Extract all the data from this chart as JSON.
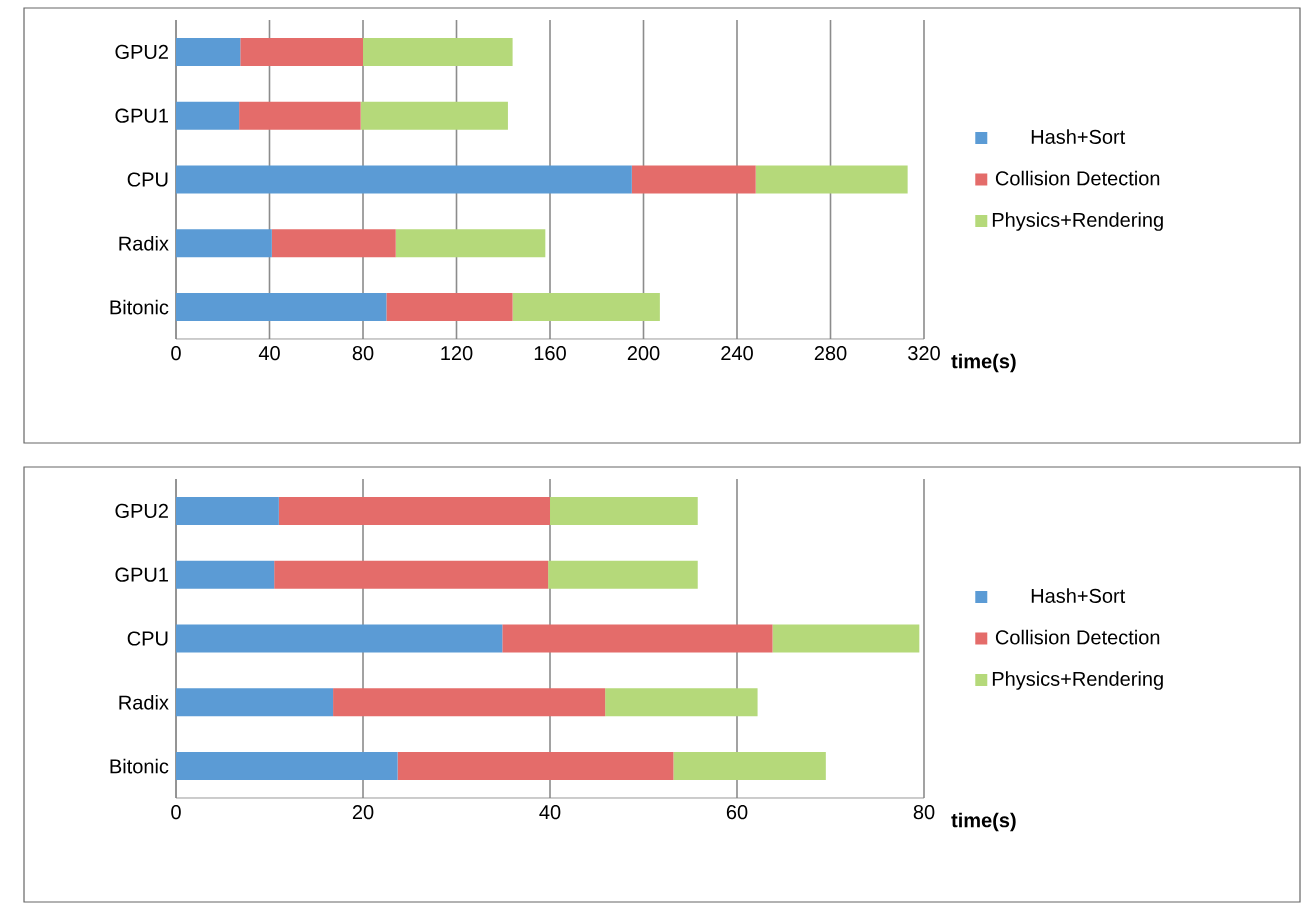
{
  "chart_data": [
    {
      "type": "bar",
      "orientation": "horizontal",
      "stacked": true,
      "categories": [
        "GPU2",
        "GPU1",
        "CPU",
        "Radix",
        "Bitonic"
      ],
      "series": [
        {
          "name": "Hash+Sort",
          "color": "#5b9bd5",
          "values": [
            27.5,
            27,
            195,
            41,
            90
          ]
        },
        {
          "name": "Collision Detection",
          "color": "#e46c6a",
          "values": [
            52.5,
            52,
            53,
            53,
            54
          ]
        },
        {
          "name": "Physics+Rendering",
          "color": "#b5d97a",
          "values": [
            64,
            63,
            65,
            64,
            63
          ]
        }
      ],
      "xlim": [
        0,
        320
      ],
      "xticks": [
        0,
        40,
        80,
        120,
        160,
        200,
        240,
        280,
        320
      ],
      "xlabel": "time(s)",
      "grid": "x",
      "legend": "right"
    },
    {
      "type": "bar",
      "orientation": "horizontal",
      "stacked": true,
      "categories": [
        "GPU2",
        "GPU1",
        "CPU",
        "Radix",
        "Bitonic"
      ],
      "series": [
        {
          "name": "Hash+Sort",
          "color": "#5b9bd5",
          "values": [
            11,
            10.5,
            34.9,
            16.8,
            23.7
          ]
        },
        {
          "name": "Collision Detection",
          "color": "#e46c6a",
          "values": [
            29,
            29.3,
            28.9,
            29.1,
            29.5
          ]
        },
        {
          "name": "Physics+Rendering",
          "color": "#b5d97a",
          "values": [
            15.8,
            16,
            15.7,
            16.3,
            16.3
          ]
        }
      ],
      "xlim": [
        0,
        80
      ],
      "xticks": [
        0,
        20,
        40,
        60,
        80
      ],
      "xlabel": "time(s)",
      "grid": "x",
      "legend": "right"
    }
  ]
}
